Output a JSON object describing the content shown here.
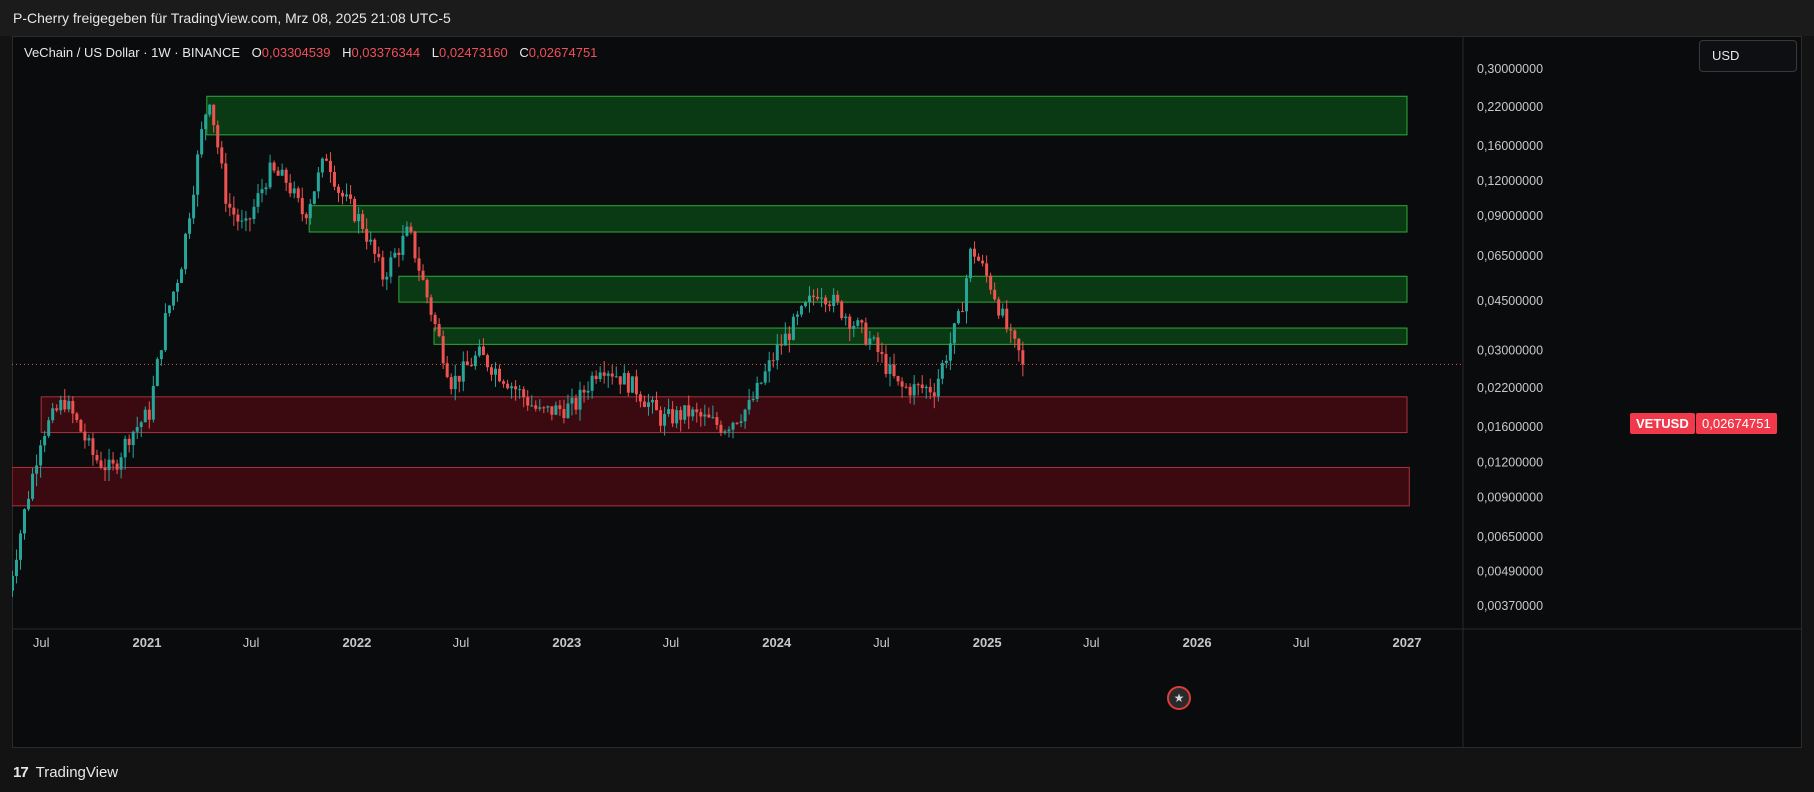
{
  "header": {
    "shared_by": "P-Cherry freigegeben für TradingView.com, Mrz 08, 2025 21:08 UTC-5"
  },
  "legend": {
    "title": "VeChain / US Dollar · 1W · BINANCE",
    "open_label": "O",
    "open_value": "0,03304539",
    "high_label": "H",
    "high_value": "0,03376344",
    "low_label": "L",
    "low_value": "0,02473160",
    "close_label": "C",
    "close_value": "0,02674751"
  },
  "currency_button": "USD",
  "price_tag": {
    "symbol": "VETUSD",
    "value": "0,02674751"
  },
  "footer": {
    "brand": "TradingView",
    "logo_glyph": "17"
  },
  "colors": {
    "up": "#26a69a",
    "down": "#ef5350",
    "green_zone_fill": "#0a3a14",
    "green_zone_border": "#2fa83a",
    "red_zone_fill": "#3a0a10",
    "red_zone_border": "#a8323c",
    "price_tag": "#f0394a",
    "background": "#0a0b0d"
  },
  "icons": {
    "flag": "us-flag-icon"
  },
  "chart_data": {
    "type": "candlestick",
    "scale": "log",
    "interval": "1W",
    "y_tick_labels": [
      "0,30000000",
      "0,22000000",
      "0,16000000",
      "0,12000000",
      "0,09000000",
      "0,06500000",
      "0,04500000",
      "0,03000000",
      "0,02200000",
      "0,01600000",
      "0,01200000",
      "0,00900000",
      "0,00650000",
      "0,00490000",
      "0,00370000"
    ],
    "y_ticks": [
      0.3,
      0.22,
      0.16,
      0.12,
      0.09,
      0.065,
      0.045,
      0.03,
      0.022,
      0.016,
      0.012,
      0.009,
      0.0065,
      0.0049,
      0.0037
    ],
    "x_ticks": [
      {
        "label": "Jul",
        "date": "2020-07-01"
      },
      {
        "label": "2021",
        "date": "2021-01-01"
      },
      {
        "label": "Jul",
        "date": "2021-07-01"
      },
      {
        "label": "2022",
        "date": "2022-01-01"
      },
      {
        "label": "Jul",
        "date": "2022-07-01"
      },
      {
        "label": "2023",
        "date": "2023-01-01"
      },
      {
        "label": "Jul",
        "date": "2023-07-01"
      },
      {
        "label": "2024",
        "date": "2024-01-01"
      },
      {
        "label": "Jul",
        "date": "2024-07-01"
      },
      {
        "label": "2025",
        "date": "2025-01-01"
      },
      {
        "label": "Jul",
        "date": "2025-07-01"
      },
      {
        "label": "2026",
        "date": "2026-01-01"
      },
      {
        "label": "Jul",
        "date": "2026-07-01"
      },
      {
        "label": "2027",
        "date": "2027-01-01"
      }
    ],
    "last_price": 0.02674751,
    "zones": [
      {
        "kind": "resistance",
        "from": "2021-04-15",
        "to": "2027-01-01",
        "low": 0.175,
        "high": 0.24
      },
      {
        "kind": "resistance",
        "from": "2021-10-10",
        "to": "2027-01-01",
        "low": 0.079,
        "high": 0.098
      },
      {
        "kind": "resistance",
        "from": "2022-03-15",
        "to": "2027-01-01",
        "low": 0.0445,
        "high": 0.055
      },
      {
        "kind": "resistance",
        "from": "2022-05-15",
        "to": "2027-01-01",
        "low": 0.0315,
        "high": 0.036
      },
      {
        "kind": "support",
        "from": "2020-07-01",
        "to": "2027-01-01",
        "low": 0.0153,
        "high": 0.0205
      },
      {
        "kind": "support",
        "from": "2020-05-01",
        "to": "2027-01-05",
        "low": 0.0084,
        "high": 0.0115
      }
    ],
    "price_path": [
      {
        "date": "2020-05-05",
        "price": 0.0042
      },
      {
        "date": "2020-06-01",
        "price": 0.0078
      },
      {
        "date": "2020-07-01",
        "price": 0.015
      },
      {
        "date": "2020-08-10",
        "price": 0.02
      },
      {
        "date": "2020-09-05",
        "price": 0.016
      },
      {
        "date": "2020-10-01",
        "price": 0.0125
      },
      {
        "date": "2020-11-01",
        "price": 0.0112
      },
      {
        "date": "2020-12-01",
        "price": 0.015
      },
      {
        "date": "2021-01-05",
        "price": 0.018
      },
      {
        "date": "2021-02-01",
        "price": 0.038
      },
      {
        "date": "2021-03-01",
        "price": 0.06
      },
      {
        "date": "2021-04-10",
        "price": 0.2
      },
      {
        "date": "2021-04-20",
        "price": 0.24
      },
      {
        "date": "2021-05-20",
        "price": 0.1
      },
      {
        "date": "2021-06-20",
        "price": 0.08
      },
      {
        "date": "2021-08-01",
        "price": 0.13
      },
      {
        "date": "2021-09-01",
        "price": 0.12
      },
      {
        "date": "2021-10-01",
        "price": 0.09
      },
      {
        "date": "2021-11-10",
        "price": 0.15
      },
      {
        "date": "2021-12-01",
        "price": 0.11
      },
      {
        "date": "2022-01-10",
        "price": 0.085
      },
      {
        "date": "2022-02-15",
        "price": 0.055
      },
      {
        "date": "2022-04-01",
        "price": 0.08
      },
      {
        "date": "2022-05-15",
        "price": 0.038
      },
      {
        "date": "2022-06-15",
        "price": 0.023
      },
      {
        "date": "2022-08-01",
        "price": 0.029
      },
      {
        "date": "2022-09-15",
        "price": 0.024
      },
      {
        "date": "2022-11-15",
        "price": 0.018
      },
      {
        "date": "2023-01-15",
        "price": 0.019
      },
      {
        "date": "2023-03-01",
        "price": 0.027
      },
      {
        "date": "2023-05-01",
        "price": 0.022
      },
      {
        "date": "2023-06-15",
        "price": 0.017
      },
      {
        "date": "2023-08-01",
        "price": 0.018
      },
      {
        "date": "2023-10-01",
        "price": 0.016
      },
      {
        "date": "2023-11-15",
        "price": 0.019
      },
      {
        "date": "2024-01-01",
        "price": 0.03
      },
      {
        "date": "2024-03-15",
        "price": 0.05
      },
      {
        "date": "2024-05-01",
        "price": 0.04
      },
      {
        "date": "2024-06-15",
        "price": 0.032
      },
      {
        "date": "2024-08-01",
        "price": 0.022
      },
      {
        "date": "2024-10-01",
        "price": 0.022
      },
      {
        "date": "2024-11-15",
        "price": 0.04
      },
      {
        "date": "2024-12-05",
        "price": 0.07
      },
      {
        "date": "2025-01-10",
        "price": 0.05
      },
      {
        "date": "2025-02-10",
        "price": 0.033
      },
      {
        "date": "2025-03-08",
        "price": 0.0267
      }
    ]
  }
}
